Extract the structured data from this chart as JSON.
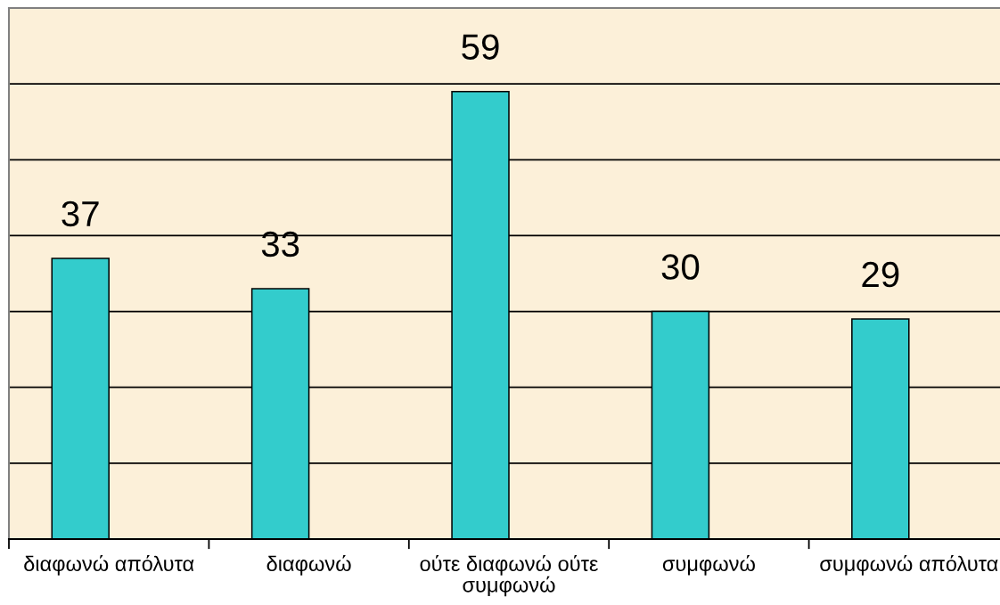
{
  "chart_data": {
    "type": "bar",
    "categories": [
      "διαφωνώ απόλυτα",
      "διαφωνώ",
      "ούτε διαφωνώ ούτε συμφωνώ",
      "συμφωνώ",
      "συμφωνώ απόλυτα"
    ],
    "values": [
      37,
      33,
      59,
      30,
      29
    ],
    "color": "#33cccc",
    "ylim": [
      0,
      70
    ],
    "yticks": [
      0,
      10,
      20,
      30,
      40,
      50,
      60,
      70
    ],
    "tick_labels": "x",
    "grid": "y",
    "data_labels": true
  }
}
